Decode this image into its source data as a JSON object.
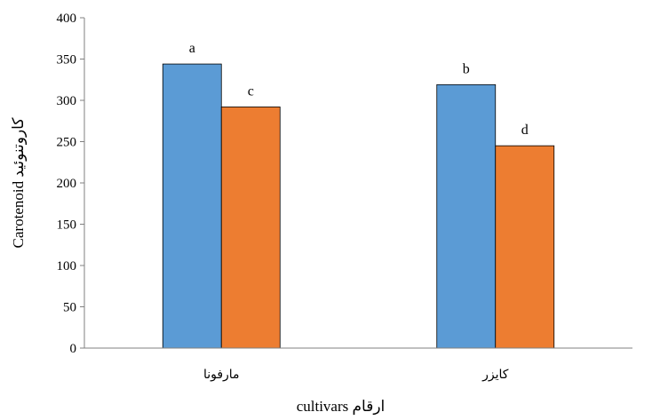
{
  "chart_data": {
    "type": "bar",
    "categories": [
      "مارفونا",
      "کایزر"
    ],
    "series": [
      {
        "values": [
          344,
          319
        ],
        "color": "#5b9bd5",
        "letters": [
          "a",
          "b"
        ]
      },
      {
        "values": [
          292,
          245
        ],
        "color": "#ed7d31",
        "letters": [
          "c",
          "d"
        ]
      }
    ],
    "ylabel": "Carotenoid کاروتنوئید",
    "xlabel": "cultivars ارقام",
    "ylim": [
      0,
      400
    ],
    "yticks": [
      "0",
      "50",
      "100",
      "150",
      "200",
      "250",
      "300",
      "350",
      "400"
    ],
    "grid": false,
    "legend": "none"
  }
}
